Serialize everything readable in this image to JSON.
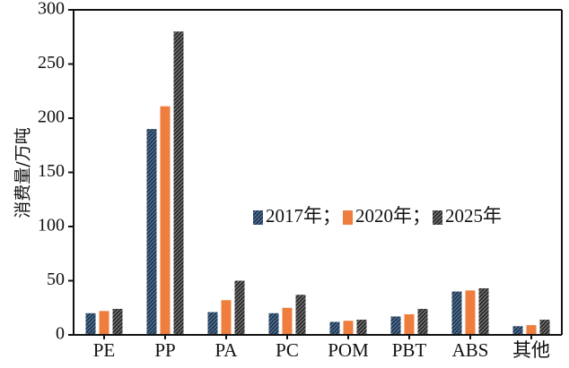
{
  "chart_data": {
    "type": "bar",
    "title": "",
    "xlabel": "",
    "ylabel": "消费量/万吨",
    "ylim": [
      0,
      300
    ],
    "yticks": [
      0,
      50,
      100,
      150,
      200,
      250,
      300
    ],
    "categories": [
      "PE",
      "PP",
      "PA",
      "PC",
      "POM",
      "PBT",
      "ABS",
      "其他"
    ],
    "series": [
      {
        "name": "2017年；",
        "color": "#1d3550",
        "pattern": "hatch-dark-blue",
        "values": [
          20,
          190,
          21,
          20,
          12,
          17,
          40,
          8
        ]
      },
      {
        "name": "2020年；",
        "color": "#ee7d3e",
        "pattern": "solid-orange",
        "values": [
          22,
          211,
          32,
          25,
          13,
          19,
          41,
          9
        ]
      },
      {
        "name": "2025年",
        "color": "#222222",
        "pattern": "hatch-black",
        "values": [
          24,
          280,
          50,
          37,
          14,
          24,
          43,
          14
        ]
      }
    ],
    "legend_position": "center-right",
    "grid": false
  }
}
